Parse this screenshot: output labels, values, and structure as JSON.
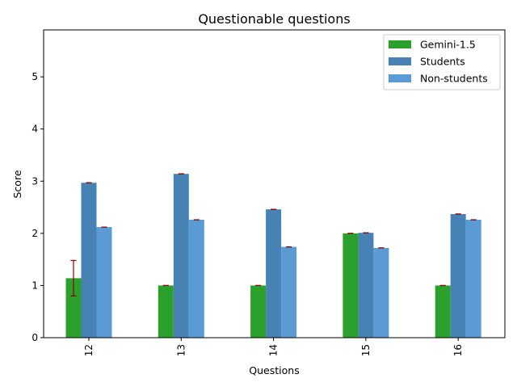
{
  "chart_data": {
    "type": "bar",
    "title": "Questionable questions",
    "xlabel": "Questions",
    "ylabel": "Score",
    "categories": [
      "12",
      "13",
      "14",
      "15",
      "16"
    ],
    "ylim": [
      0,
      5.9
    ],
    "yticks": [
      "0",
      "1",
      "2",
      "3",
      "4",
      "5"
    ],
    "legend_position": "top-right",
    "series": [
      {
        "name": "Gemini-1.5",
        "color": "#2ca02c",
        "values": [
          1.14,
          1.0,
          1.0,
          2.0,
          1.0
        ],
        "errors": [
          0.34,
          0,
          0,
          0,
          0
        ]
      },
      {
        "name": "Students",
        "color": "#4682b4",
        "values": [
          2.97,
          3.14,
          2.46,
          2.01,
          2.37
        ],
        "errors": [
          0,
          0,
          0,
          0,
          0
        ]
      },
      {
        "name": "Non-students",
        "color": "#5b9bd5",
        "values": [
          2.12,
          2.26,
          1.74,
          1.72,
          2.26
        ],
        "errors": [
          0,
          0,
          0,
          0,
          0
        ]
      }
    ],
    "error_color": "#8b0000"
  }
}
